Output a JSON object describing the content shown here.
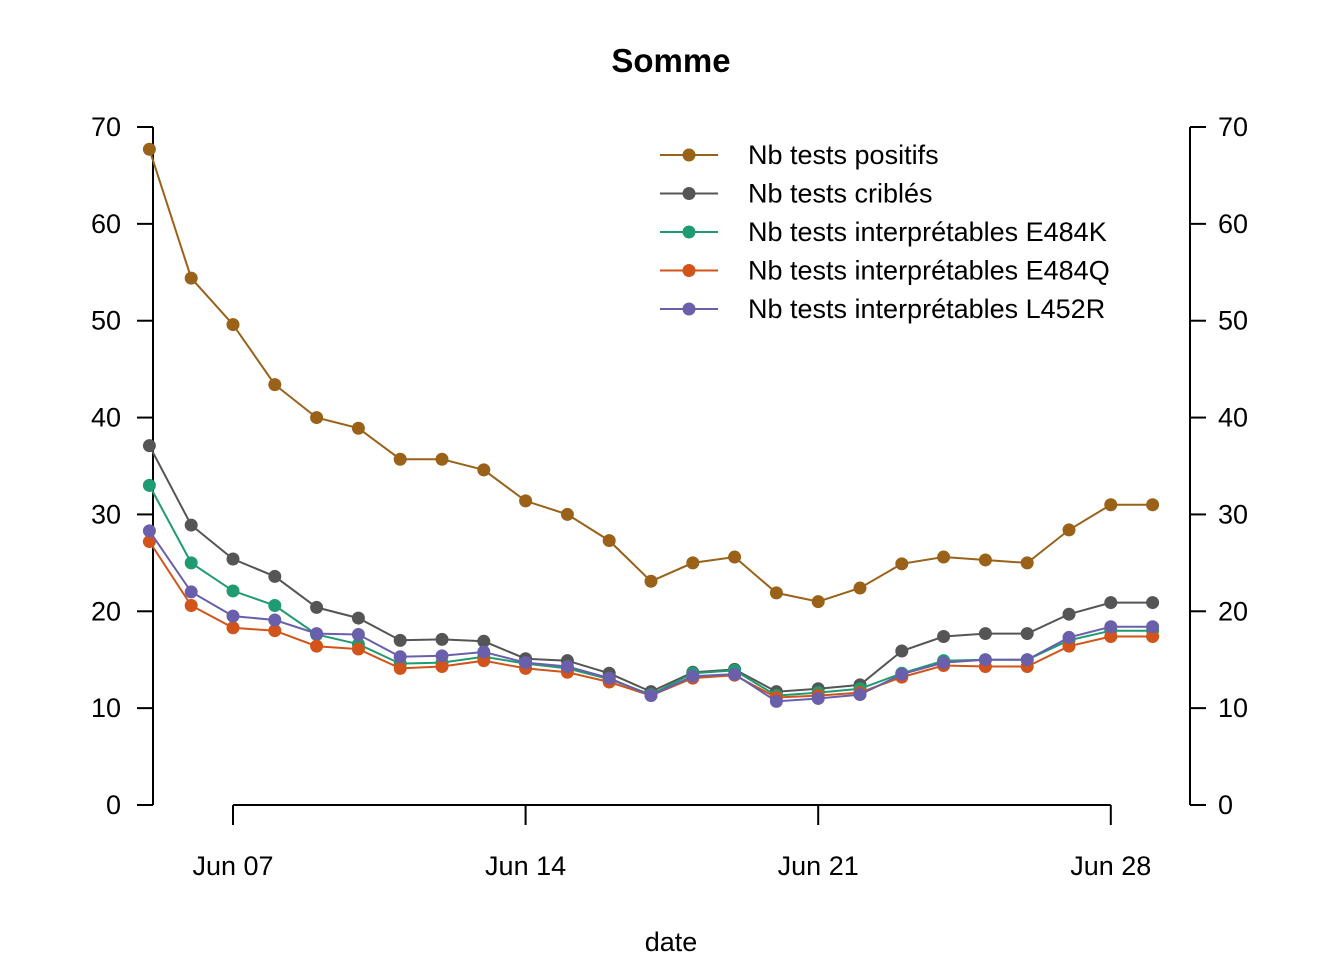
{
  "chart_data": {
    "type": "line",
    "title": "Somme",
    "xlabel": "date",
    "ylabel": "",
    "ylim": [
      0,
      70
    ],
    "y_ticks": [
      0,
      10,
      20,
      30,
      40,
      50,
      60,
      70
    ],
    "y_ticks_right": [
      0,
      10,
      20,
      30,
      40,
      50,
      60,
      70
    ],
    "x": [
      "2021-06-05",
      "2021-06-06",
      "2021-06-07",
      "2021-06-08",
      "2021-06-09",
      "2021-06-10",
      "2021-06-11",
      "2021-06-12",
      "2021-06-13",
      "2021-06-14",
      "2021-06-15",
      "2021-06-16",
      "2021-06-17",
      "2021-06-18",
      "2021-06-19",
      "2021-06-20",
      "2021-06-21",
      "2021-06-22",
      "2021-06-23",
      "2021-06-24",
      "2021-06-25",
      "2021-06-26",
      "2021-06-27",
      "2021-06-28",
      "2021-06-29"
    ],
    "x_ticks": [
      {
        "date": "2021-06-07",
        "label": "Jun 07"
      },
      {
        "date": "2021-06-14",
        "label": "Jun 14"
      },
      {
        "date": "2021-06-21",
        "label": "Jun 21"
      },
      {
        "date": "2021-06-28",
        "label": "Jun 28"
      }
    ],
    "grid": false,
    "legend_position": "top-right",
    "series": [
      {
        "name": "Nb tests positifs",
        "color": "#9a6119",
        "values": [
          67.7,
          54.4,
          49.6,
          43.4,
          40.0,
          38.9,
          35.7,
          35.7,
          34.6,
          31.4,
          30.0,
          27.3,
          23.1,
          25.0,
          25.6,
          21.9,
          21.0,
          22.4,
          24.9,
          25.6,
          25.3,
          25.0,
          28.4,
          31.0,
          31.0
        ]
      },
      {
        "name": "Nb tests criblés",
        "color": "#555555",
        "values": [
          37.1,
          28.9,
          25.4,
          23.6,
          20.4,
          19.3,
          17.0,
          17.1,
          16.9,
          15.1,
          14.9,
          13.6,
          11.7,
          13.7,
          14.0,
          11.7,
          12.0,
          12.4,
          15.9,
          17.4,
          17.7,
          17.7,
          19.7,
          20.9,
          20.9
        ]
      },
      {
        "name": "Nb tests interprétables E484K",
        "color": "#1f9b72",
        "values": [
          33.0,
          25.0,
          22.1,
          20.6,
          17.6,
          16.6,
          14.6,
          14.7,
          15.3,
          14.6,
          14.1,
          13.0,
          11.4,
          13.6,
          13.9,
          11.3,
          11.6,
          12.0,
          13.6,
          14.9,
          15.0,
          15.0,
          17.0,
          18.0,
          18.0
        ]
      },
      {
        "name": "Nb tests interprétables E484Q",
        "color": "#d2541a",
        "values": [
          27.2,
          20.6,
          18.3,
          18.0,
          16.4,
          16.1,
          14.1,
          14.3,
          14.9,
          14.1,
          13.7,
          12.7,
          11.3,
          13.1,
          13.4,
          11.1,
          11.3,
          11.6,
          13.2,
          14.4,
          14.3,
          14.3,
          16.4,
          17.4,
          17.4
        ]
      },
      {
        "name": "Nb tests interprétables L452R",
        "color": "#6a5fab",
        "values": [
          28.3,
          22.0,
          19.5,
          19.1,
          17.7,
          17.6,
          15.3,
          15.4,
          15.8,
          14.7,
          14.3,
          13.1,
          11.3,
          13.3,
          13.5,
          10.7,
          11.0,
          11.4,
          13.5,
          14.7,
          15.0,
          15.0,
          17.3,
          18.4,
          18.4
        ]
      }
    ]
  }
}
